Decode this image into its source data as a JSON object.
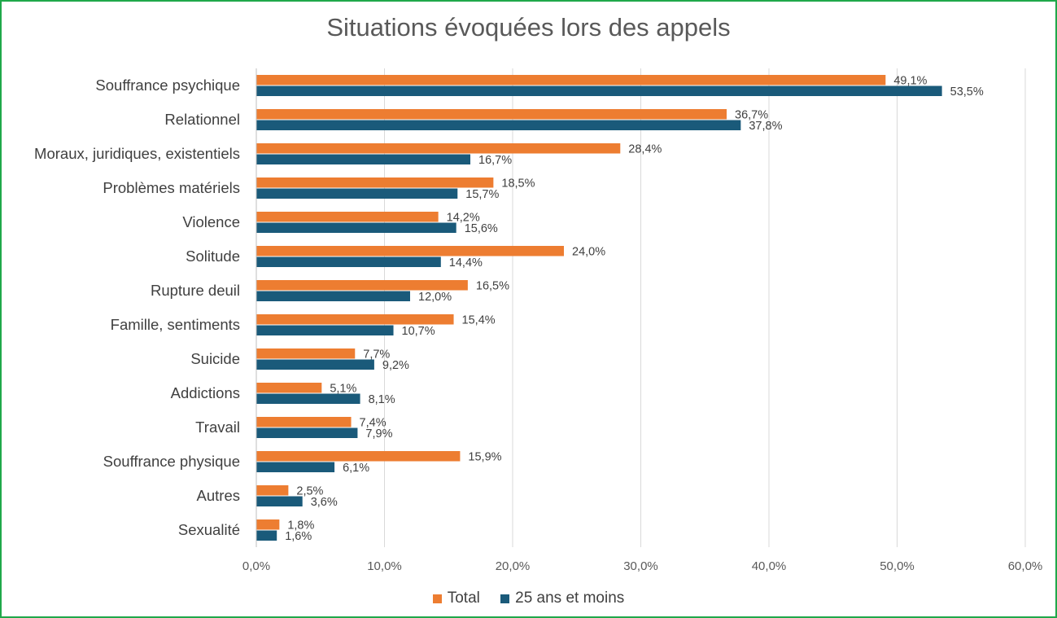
{
  "chart_data": {
    "type": "bar",
    "orientation": "horizontal",
    "title": "Situations évoquées lors des appels",
    "categories": [
      "Souffrance psychique",
      "Relationnel",
      "Moraux, juridiques, existentiels",
      "Problèmes matériels",
      "Violence",
      "Solitude",
      "Rupture deuil",
      "Famille, sentiments",
      "Suicide",
      "Addictions",
      "Travail",
      "Souffrance physique",
      "Autres",
      "Sexualité"
    ],
    "series": [
      {
        "name": "Total",
        "color": "#ed7d31",
        "values": [
          49.1,
          36.7,
          28.4,
          18.5,
          14.2,
          24.0,
          16.5,
          15.4,
          7.7,
          5.1,
          7.4,
          15.9,
          2.5,
          1.8
        ],
        "labels": [
          "49,1%",
          "36,7%",
          "28,4%",
          "18,5%",
          "14,2%",
          "24,0%",
          "16,5%",
          "15,4%",
          "7,7%",
          "5,1%",
          "7,4%",
          "15,9%",
          "2,5%",
          "1,8%"
        ]
      },
      {
        "name": "25 ans et moins",
        "color": "#1a5a7a",
        "values": [
          53.5,
          37.8,
          16.7,
          15.7,
          15.6,
          14.4,
          12.0,
          10.7,
          9.2,
          8.1,
          7.9,
          6.1,
          3.6,
          1.6
        ],
        "labels": [
          "53,5%",
          "37,8%",
          "16,7%",
          "15,7%",
          "15,6%",
          "14,4%",
          "12,0%",
          "10,7%",
          "9,2%",
          "8,1%",
          "7,9%",
          "6,1%",
          "3,6%",
          "1,6%"
        ]
      }
    ],
    "xlim": [
      0,
      60
    ],
    "x_ticks": [
      "0,0%",
      "10,0%",
      "20,0%",
      "30,0%",
      "40,0%",
      "50,0%",
      "60,0%"
    ],
    "grid": "vertical",
    "legend_position": "bottom",
    "frame_color": "#1fa84a"
  }
}
